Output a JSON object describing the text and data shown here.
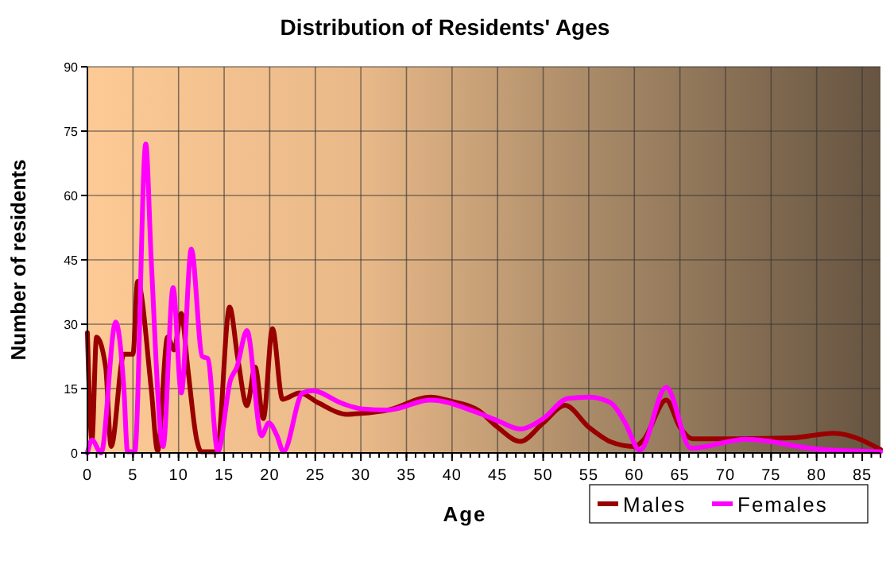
{
  "chart_data": {
    "type": "line",
    "title": "Distribution of Residents' Ages",
    "xlabel": "Age",
    "ylabel": "Number of residents",
    "xlim": [
      0,
      87
    ],
    "ylim": [
      0,
      90
    ],
    "xticks": [
      0,
      5,
      10,
      15,
      20,
      25,
      30,
      35,
      40,
      45,
      50,
      55,
      60,
      65,
      70,
      75,
      80,
      85
    ],
    "yticks": [
      0,
      15,
      30,
      45,
      60,
      75,
      90
    ],
    "grid": true,
    "legend": "bottom right",
    "line_style": "solid",
    "marker": "none",
    "series": [
      {
        "name": "Males",
        "color": "#990000",
        "x": [
          0,
          0.5,
          1,
          2,
          2.6,
          4,
          5,
          5.5,
          7,
          7.7,
          8.8,
          9.5,
          10.3,
          11,
          12,
          12.5,
          14.2,
          15.6,
          16.5,
          17.5,
          18.4,
          19.3,
          20.3,
          21.4,
          23.3,
          25.3,
          28.5,
          30,
          33,
          37.6,
          40,
          42.9,
          45,
          47.5,
          50,
          52.4,
          55,
          57.4,
          60,
          61,
          63.5,
          65,
          66.4,
          71.4,
          77.2,
          81.9,
          87
        ],
        "values": [
          28,
          3,
          27,
          20,
          1.5,
          23,
          23,
          40,
          15,
          0.5,
          27,
          24,
          32.5,
          20,
          3,
          0.3,
          0.3,
          34,
          22,
          11,
          20,
          8,
          29,
          12.5,
          14,
          11.7,
          9,
          9.2,
          10,
          13,
          12,
          9.9,
          6,
          2.7,
          7,
          11.1,
          6,
          2.6,
          1.5,
          3,
          12.3,
          6,
          3.3,
          3.3,
          3.5,
          4.6,
          0.8
        ]
      },
      {
        "name": "Females",
        "color": "#ff00ff",
        "x": [
          0,
          0.5,
          1.5,
          3.1,
          4,
          4.4,
          5.2,
          6.4,
          7,
          8.3,
          9.4,
          10.3,
          11.4,
          12.6,
          13.2,
          14.3,
          15.7,
          16.4,
          17.5,
          19.1,
          19.9,
          20.8,
          21.5,
          23.6,
          24.7,
          28,
          30,
          33,
          37.6,
          42.9,
          45,
          47.5,
          50,
          52.7,
          55,
          57.4,
          59,
          60.6,
          63.5,
          66.2,
          72.3,
          80.1,
          87
        ],
        "values": [
          0,
          3,
          0,
          30.5,
          15,
          0.3,
          0.3,
          72,
          45,
          1.5,
          38.5,
          14,
          47.5,
          22.5,
          22,
          0.3,
          17,
          20,
          28.5,
          4,
          7,
          4,
          0.3,
          14,
          14.5,
          11.5,
          10.3,
          10,
          12.3,
          9.3,
          7.5,
          5.6,
          8,
          12.7,
          13,
          11.7,
          7,
          0.6,
          15.3,
          1.1,
          3.2,
          0.9,
          0.3
        ]
      }
    ]
  }
}
